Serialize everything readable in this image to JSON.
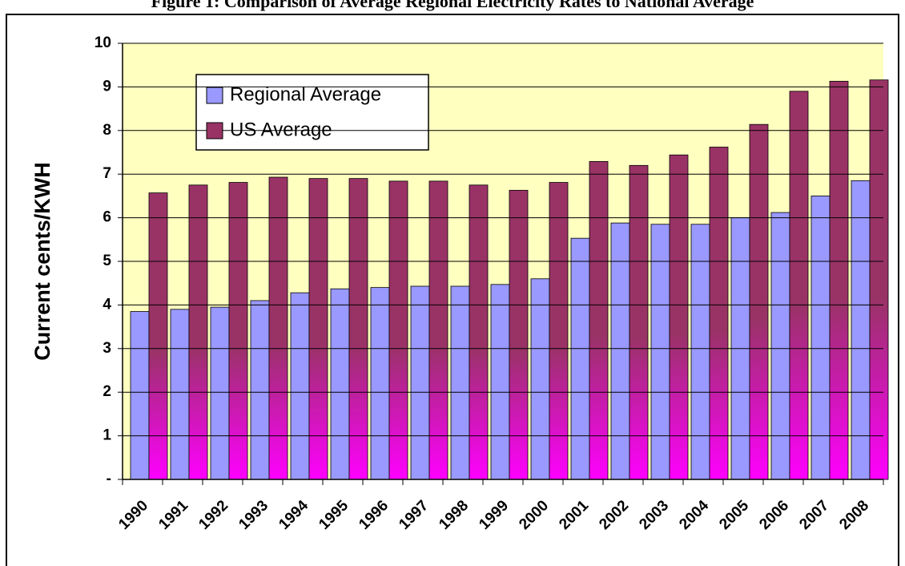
{
  "chart_data": {
    "type": "bar",
    "title": "Figure 1: Comparison of Average Regional Electricity Rates to National Average",
    "y_label": "Current cents/KWH",
    "categories": [
      "1990",
      "1991",
      "1992",
      "1993",
      "1994",
      "1995",
      "1996",
      "1997",
      "1998",
      "1999",
      "2000",
      "2001",
      "2002",
      "2003",
      "2004",
      "2005",
      "2006",
      "2007",
      "2008"
    ],
    "series": [
      {
        "name": "Regional Average",
        "color": "#9999ff",
        "values": [
          3.85,
          3.9,
          3.95,
          4.1,
          4.28,
          4.37,
          4.4,
          4.43,
          4.43,
          4.47,
          4.6,
          5.53,
          5.88,
          5.85,
          5.85,
          6.0,
          6.12,
          6.5,
          6.85
        ]
      },
      {
        "name": "US Average",
        "color": "#993366",
        "values": [
          6.57,
          6.75,
          6.81,
          6.93,
          6.9,
          6.9,
          6.84,
          6.84,
          6.75,
          6.63,
          6.81,
          7.29,
          7.2,
          7.44,
          7.62,
          8.14,
          8.9,
          9.13,
          9.16
        ]
      }
    ],
    "ylim": [
      0,
      10
    ],
    "yticks": [
      {
        "value": 0,
        "label": "-"
      },
      1,
      2,
      3,
      4,
      5,
      6,
      7,
      8,
      9,
      10
    ],
    "grid": true,
    "legend": "top-left"
  }
}
